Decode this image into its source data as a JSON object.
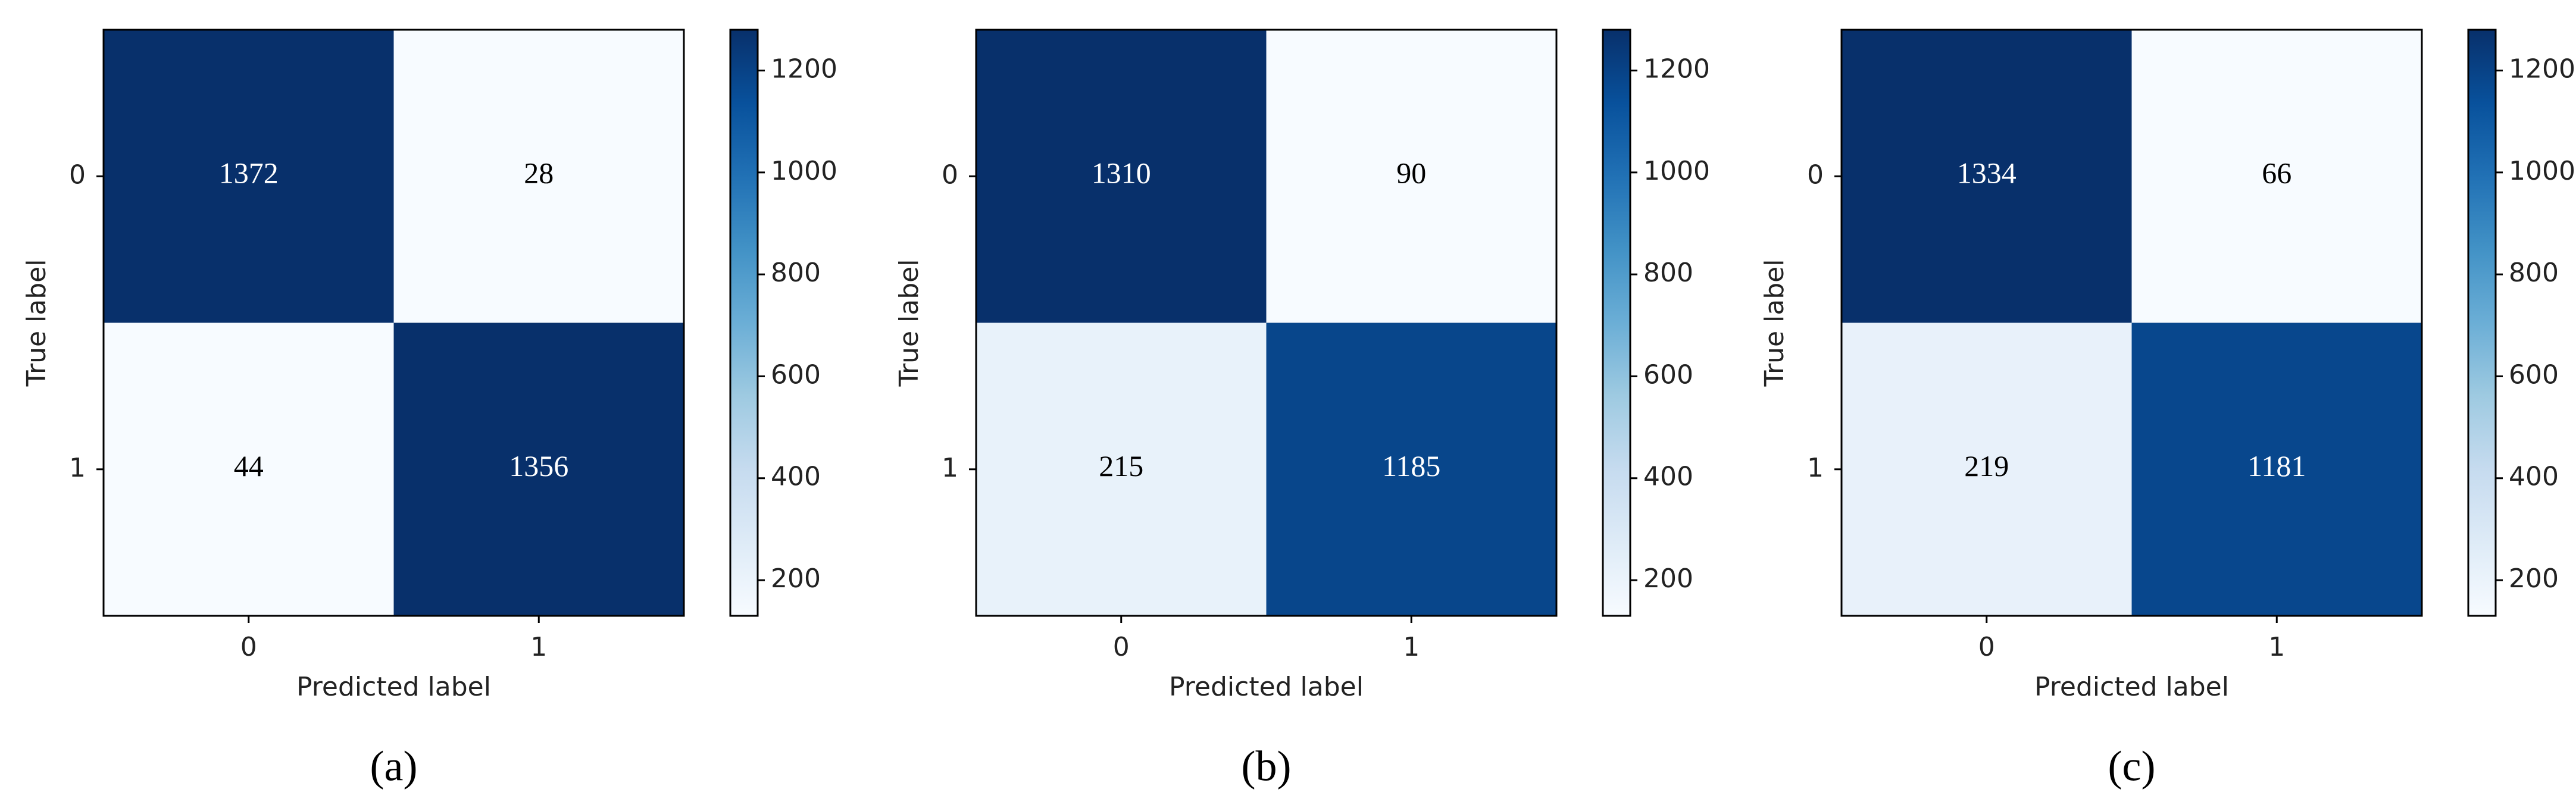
{
  "chart_data": [
    {
      "type": "heatmap",
      "caption": "(a)",
      "xlabel": "Predicted label",
      "ylabel": "True label",
      "x_categories": [
        "0",
        "1"
      ],
      "y_categories": [
        "0",
        "1"
      ],
      "values": [
        [
          1372,
          28
        ],
        [
          44,
          1356
        ]
      ],
      "colormap": "Blues",
      "clim": [
        130,
        1280
      ],
      "cticks": [
        200,
        400,
        600,
        800,
        1000,
        1200
      ]
    },
    {
      "type": "heatmap",
      "caption": "(b)",
      "xlabel": "Predicted label",
      "ylabel": "True label",
      "x_categories": [
        "0",
        "1"
      ],
      "y_categories": [
        "0",
        "1"
      ],
      "values": [
        [
          1310,
          90
        ],
        [
          215,
          1185
        ]
      ],
      "colormap": "Blues",
      "clim": [
        130,
        1280
      ],
      "cticks": [
        200,
        400,
        600,
        800,
        1000,
        1200
      ]
    },
    {
      "type": "heatmap",
      "caption": "(c)",
      "xlabel": "Predicted label",
      "ylabel": "True label",
      "x_categories": [
        "0",
        "1"
      ],
      "y_categories": [
        "0",
        "1"
      ],
      "values": [
        [
          1334,
          66
        ],
        [
          219,
          1181
        ]
      ],
      "colormap": "Blues",
      "clim": [
        130,
        1280
      ],
      "cticks": [
        200,
        400,
        600,
        800,
        1000,
        1200
      ]
    }
  ]
}
